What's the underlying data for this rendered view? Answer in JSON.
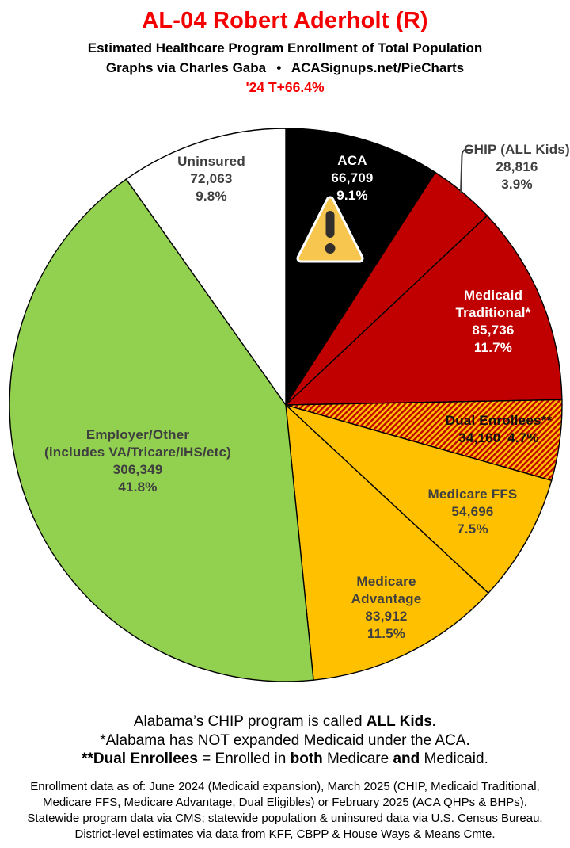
{
  "header": {
    "title": "AL-04 Robert Aderholt (R)",
    "subtitle1": "Estimated Healthcare Program Enrollment of Total Population",
    "subtitle2": "Graphs via Charles Gaba  •  ACASignups.net/PieCharts",
    "tagline": "'24 T+66.4%",
    "accent_red": "#F40000"
  },
  "chart_data": {
    "type": "pie",
    "title": "AL-04 Robert Aderholt (R) — Estimated Healthcare Program Enrollment of Total Population",
    "start_angle_deg": 0,
    "direction": "clockwise",
    "units": "people",
    "slices": [
      {
        "id": "aca",
        "label": "ACA",
        "value": 66709,
        "pct": 9.1,
        "color": "#000000",
        "text_color": "#FFFFFF",
        "display": [
          "ACA",
          "66,709",
          "9.1%"
        ],
        "has_warning_icon": true
      },
      {
        "id": "chip",
        "label": "CHIP (ALL Kids)",
        "value": 28816,
        "pct": 3.9,
        "color": "#C00000",
        "label_outside": true,
        "display": [
          "CHIP (ALL Kids)",
          "28,816",
          "3.9%"
        ]
      },
      {
        "id": "medicaid-traditional",
        "label": "Medicaid Traditional*",
        "value": 85736,
        "pct": 11.7,
        "color": "#C00000",
        "text_color": "#FFFFFF",
        "display": [
          "Medicaid",
          "Traditional*",
          "85,736",
          "11.7%"
        ]
      },
      {
        "id": "dual-enrollees",
        "label": "Dual Enrollees**",
        "value": 34160,
        "pct": 4.7,
        "color": "#FFC000",
        "pattern": "diagonal-stripes",
        "pattern_color": "#C00000",
        "display": [
          "Dual Enrollees**",
          "34,160 4.7%"
        ]
      },
      {
        "id": "medicare-ffs",
        "label": "Medicare FFS",
        "value": 54696,
        "pct": 7.5,
        "color": "#FFC000",
        "display": [
          "Medicare FFS",
          "54,696",
          "7.5%"
        ]
      },
      {
        "id": "medicare-advantage",
        "label": "Medicare Advantage",
        "value": 83912,
        "pct": 11.5,
        "color": "#FFC000",
        "display": [
          "Medicare",
          "Advantage",
          "83,912",
          "11.5%"
        ]
      },
      {
        "id": "employer-other",
        "label": "Employer/Other (includes VA/Tricare/IHS/etc)",
        "value": 306349,
        "pct": 41.8,
        "color": "#92D050",
        "display": [
          "Employer/Other",
          "(includes VA/Tricare/IHS/etc)",
          "306,349",
          "41.8%"
        ]
      },
      {
        "id": "uninsured",
        "label": "Uninsured",
        "value": 72063,
        "pct": 9.8,
        "color": "#FFFFFF",
        "display": [
          "Uninsured",
          "72,063",
          "9.8%"
        ]
      }
    ],
    "icons": {
      "warning_icon_on_slice": "aca",
      "warning_icon_color": "#F7C64F"
    }
  },
  "notes": [
    [
      {
        "t": "Alabama’s CHIP program is called ",
        "b": false
      },
      {
        "t": "ALL Kids.",
        "b": true
      }
    ],
    [
      {
        "t": "*Alabama has NOT expanded Medicaid under the ACA.",
        "b": false
      }
    ],
    [
      {
        "t": "**Dual Enrollees",
        "b": true
      },
      {
        "t": " = Enrolled in ",
        "b": false
      },
      {
        "t": "both",
        "b": true
      },
      {
        "t": " Medicare ",
        "b": false
      },
      {
        "t": "and",
        "b": true
      },
      {
        "t": " Medicaid.",
        "b": false
      }
    ]
  ],
  "source": {
    "lines": [
      "Enrollment data as of: June 2024 (Medicaid expansion), March 2025 (CHIP, Medicaid Traditional,",
      "Medicare FFS, Medicare Advantage, Dual Eligibles) or February 2025 (ACA QHPs & BHPs).",
      "Statewide program data via CMS; statewide population & uninsured data via U.S. Census Bureau.",
      "District-level estimates via data from KFF, CBPP & House Ways & Means Cmte."
    ]
  }
}
